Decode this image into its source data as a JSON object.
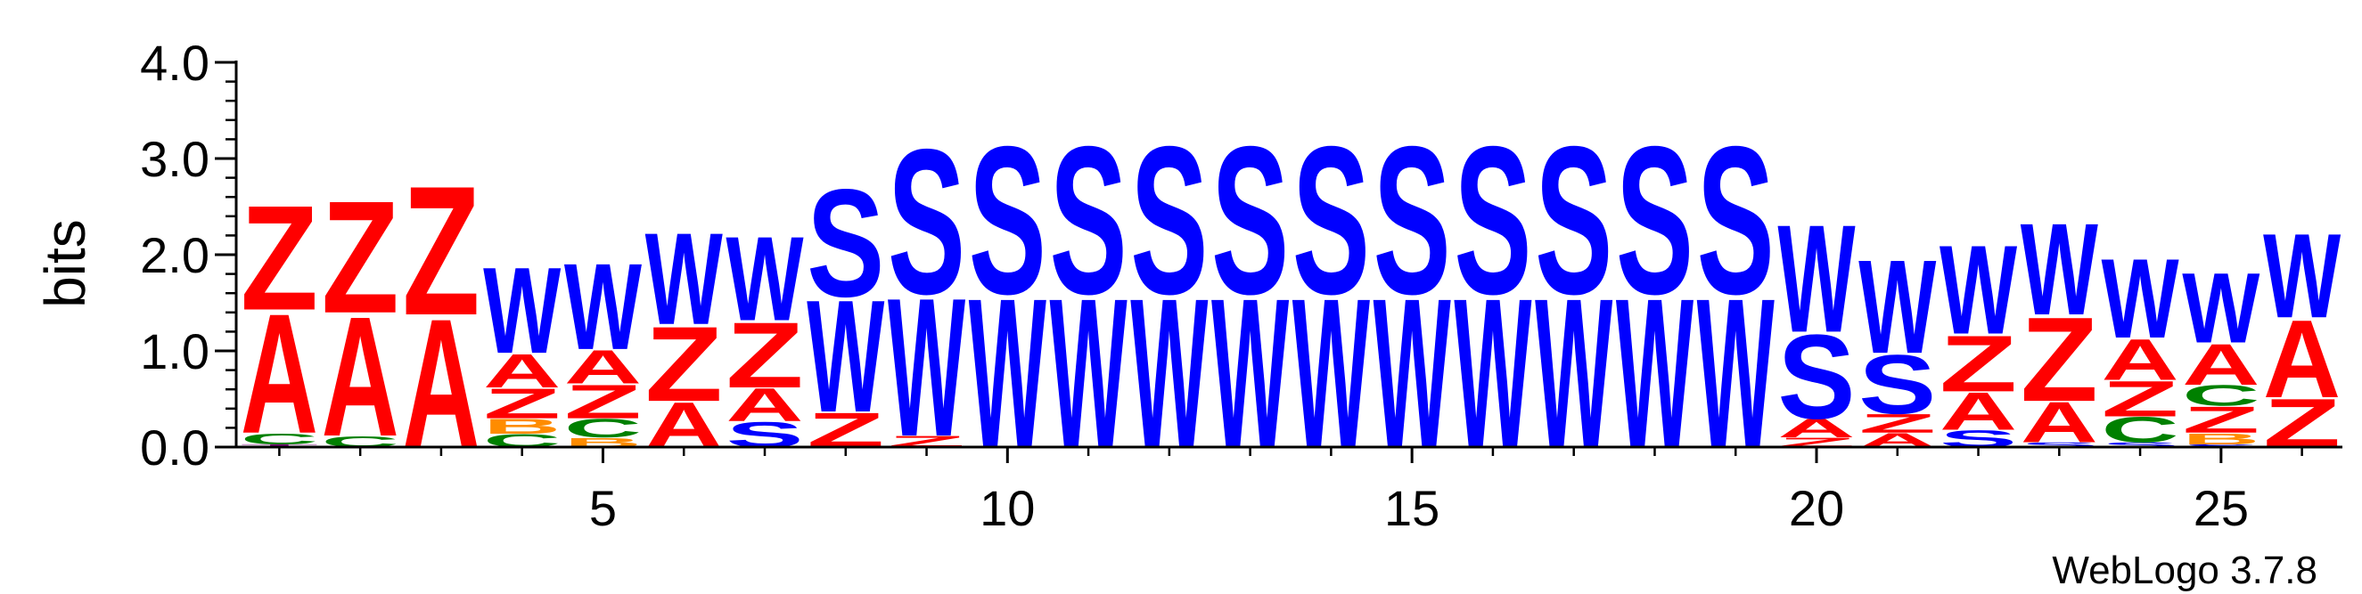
{
  "chart_data": {
    "type": "sequence-logo",
    "ylabel": "bits",
    "ylim": [
      0,
      4
    ],
    "y_ticks": [
      {
        "value": 0,
        "label": "0.0"
      },
      {
        "value": 1,
        "label": "1.0"
      },
      {
        "value": 2,
        "label": "2.0"
      },
      {
        "value": 3,
        "label": "3.0"
      },
      {
        "value": 4,
        "label": "4.0"
      }
    ],
    "x_range": [
      1,
      26
    ],
    "x_ticks": [
      {
        "value": 5,
        "label": "5"
      },
      {
        "value": 10,
        "label": "10"
      },
      {
        "value": 15,
        "label": "15"
      },
      {
        "value": 20,
        "label": "20"
      },
      {
        "value": 25,
        "label": "25"
      }
    ],
    "credit": "WebLogo 3.7.8",
    "colors": {
      "A": "#ff0000",
      "Z": "#ff0000",
      "W": "#0000ff",
      "S": "#0000ff",
      "C": "#008000",
      "B": "#ff8c00",
      "T": "#800080"
    },
    "positions": [
      {
        "pos": 1,
        "stack": [
          {
            "letter": "T",
            "bits": 0.03
          },
          {
            "letter": "C",
            "bits": 0.12
          },
          {
            "letter": "A",
            "bits": 1.28
          },
          {
            "letter": "Z",
            "bits": 1.12
          }
        ]
      },
      {
        "pos": 2,
        "stack": [
          {
            "letter": "C",
            "bits": 0.12
          },
          {
            "letter": "A",
            "bits": 1.28
          },
          {
            "letter": "Z",
            "bits": 1.2
          }
        ]
      },
      {
        "pos": 3,
        "stack": [
          {
            "letter": "A",
            "bits": 1.38
          },
          {
            "letter": "Z",
            "bits": 1.38
          }
        ]
      },
      {
        "pos": 4,
        "stack": [
          {
            "letter": "C",
            "bits": 0.14
          },
          {
            "letter": "B",
            "bits": 0.16
          },
          {
            "letter": "Z",
            "bits": 0.32
          },
          {
            "letter": "A",
            "bits": 0.36
          },
          {
            "letter": "W",
            "bits": 0.92
          }
        ]
      },
      {
        "pos": 5,
        "stack": [
          {
            "letter": "B",
            "bits": 0.1
          },
          {
            "letter": "C",
            "bits": 0.2
          },
          {
            "letter": "Z",
            "bits": 0.36
          },
          {
            "letter": "A",
            "bits": 0.36
          },
          {
            "letter": "W",
            "bits": 0.92
          }
        ]
      },
      {
        "pos": 6,
        "stack": [
          {
            "letter": "A",
            "bits": 0.48
          },
          {
            "letter": "Z",
            "bits": 0.8
          },
          {
            "letter": "W",
            "bits": 0.98
          }
        ]
      },
      {
        "pos": 7,
        "stack": [
          {
            "letter": "S",
            "bits": 0.27
          },
          {
            "letter": "A",
            "bits": 0.35
          },
          {
            "letter": "Z",
            "bits": 0.7
          },
          {
            "letter": "W",
            "bits": 0.9
          }
        ]
      },
      {
        "pos": 8,
        "stack": [
          {
            "letter": "Z",
            "bits": 0.37
          },
          {
            "letter": "W",
            "bits": 1.2
          },
          {
            "letter": "S",
            "bits": 1.15
          }
        ]
      },
      {
        "pos": 9,
        "stack": [
          {
            "letter": "Z",
            "bits": 0.12
          },
          {
            "letter": "W",
            "bits": 1.48
          },
          {
            "letter": "S",
            "bits": 1.55
          }
        ]
      },
      {
        "pos": 10,
        "stack": [
          {
            "letter": "W",
            "bits": 1.6
          },
          {
            "letter": "S",
            "bits": 1.58
          }
        ]
      },
      {
        "pos": 11,
        "stack": [
          {
            "letter": "W",
            "bits": 1.6
          },
          {
            "letter": "S",
            "bits": 1.58
          }
        ]
      },
      {
        "pos": 12,
        "stack": [
          {
            "letter": "W",
            "bits": 1.6
          },
          {
            "letter": "S",
            "bits": 1.58
          }
        ]
      },
      {
        "pos": 13,
        "stack": [
          {
            "letter": "W",
            "bits": 1.6
          },
          {
            "letter": "S",
            "bits": 1.58
          }
        ]
      },
      {
        "pos": 14,
        "stack": [
          {
            "letter": "W",
            "bits": 1.6
          },
          {
            "letter": "S",
            "bits": 1.58
          }
        ]
      },
      {
        "pos": 15,
        "stack": [
          {
            "letter": "W",
            "bits": 1.6
          },
          {
            "letter": "S",
            "bits": 1.58
          }
        ]
      },
      {
        "pos": 16,
        "stack": [
          {
            "letter": "W",
            "bits": 1.6
          },
          {
            "letter": "S",
            "bits": 1.58
          }
        ]
      },
      {
        "pos": 17,
        "stack": [
          {
            "letter": "W",
            "bits": 1.6
          },
          {
            "letter": "S",
            "bits": 1.58
          }
        ]
      },
      {
        "pos": 18,
        "stack": [
          {
            "letter": "W",
            "bits": 1.6
          },
          {
            "letter": "S",
            "bits": 1.58
          }
        ]
      },
      {
        "pos": 19,
        "stack": [
          {
            "letter": "W",
            "bits": 1.6
          },
          {
            "letter": "S",
            "bits": 1.58
          }
        ]
      },
      {
        "pos": 20,
        "stack": [
          {
            "letter": "Z",
            "bits": 0.1
          },
          {
            "letter": "A",
            "bits": 0.2
          },
          {
            "letter": "S",
            "bits": 0.9
          },
          {
            "letter": "W",
            "bits": 1.15
          }
        ]
      },
      {
        "pos": 21,
        "stack": [
          {
            "letter": "A",
            "bits": 0.15
          },
          {
            "letter": "Z",
            "bits": 0.2
          },
          {
            "letter": "S",
            "bits": 0.63
          },
          {
            "letter": "W",
            "bits": 1.0
          }
        ]
      },
      {
        "pos": 22,
        "stack": [
          {
            "letter": "S",
            "bits": 0.18
          },
          {
            "letter": "A",
            "bits": 0.4
          },
          {
            "letter": "Z",
            "bits": 0.6
          },
          {
            "letter": "W",
            "bits": 0.95
          }
        ]
      },
      {
        "pos": 23,
        "stack": [
          {
            "letter": "S",
            "bits": 0.05
          },
          {
            "letter": "A",
            "bits": 0.43
          },
          {
            "letter": "Z",
            "bits": 0.9
          },
          {
            "letter": "W",
            "bits": 0.98
          }
        ]
      },
      {
        "pos": 24,
        "stack": [
          {
            "letter": "S",
            "bits": 0.05
          },
          {
            "letter": "C",
            "bits": 0.27
          },
          {
            "letter": "Z",
            "bits": 0.38
          },
          {
            "letter": "A",
            "bits": 0.44
          },
          {
            "letter": "W",
            "bits": 0.85
          }
        ]
      },
      {
        "pos": 25,
        "stack": [
          {
            "letter": "S",
            "bits": 0.03
          },
          {
            "letter": "B",
            "bits": 0.12
          },
          {
            "letter": "Z",
            "bits": 0.28
          },
          {
            "letter": "C",
            "bits": 0.22
          },
          {
            "letter": "A",
            "bits": 0.44
          },
          {
            "letter": "W",
            "bits": 0.75
          }
        ]
      },
      {
        "pos": 26,
        "stack": [
          {
            "letter": "Z",
            "bits": 0.52
          },
          {
            "letter": "A",
            "bits": 0.83
          },
          {
            "letter": "W",
            "bits": 0.9
          }
        ]
      }
    ]
  }
}
